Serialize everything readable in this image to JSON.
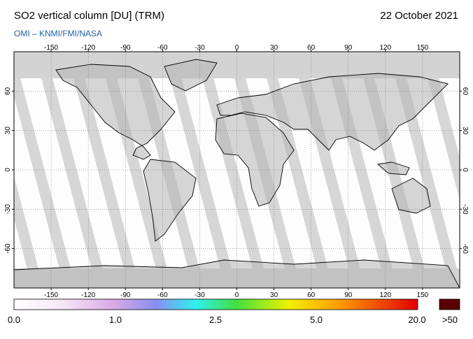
{
  "header": {
    "title": "SO2 vertical column [DU] (TRM)",
    "subtitle": "OMI  –  KNMI/FMI/NASA",
    "date": "22 October 2021"
  },
  "map": {
    "lon_ticks": [
      -150,
      -120,
      -90,
      -60,
      -30,
      0,
      30,
      60,
      90,
      120,
      150
    ],
    "lat_ticks": [
      60,
      30,
      0,
      -30,
      -60
    ],
    "lon_range": [
      -180,
      180
    ],
    "lat_range": [
      90,
      -90
    ]
  },
  "colorbar": {
    "labels": [
      "0.0",
      "1.0",
      "2.5",
      "5.0",
      "20.0",
      ">50"
    ]
  }
}
